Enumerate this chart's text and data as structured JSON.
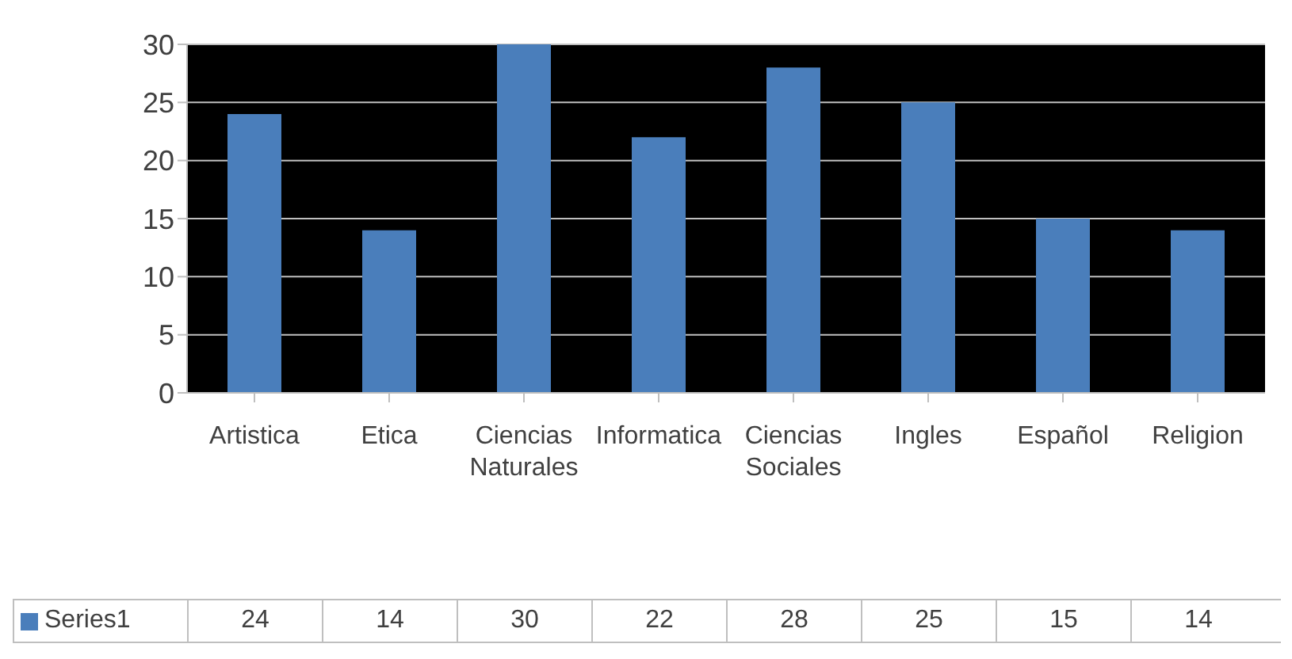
{
  "chart_data": {
    "type": "bar",
    "categories": [
      "Artistica",
      "Etica",
      "Ciencias Naturales",
      "Informatica",
      "Ciencias Sociales",
      "Ingles",
      "Español",
      "Religion"
    ],
    "series": [
      {
        "name": "Series1",
        "color": "#4a7ebb",
        "values": [
          24,
          14,
          30,
          22,
          28,
          25,
          15,
          14
        ]
      }
    ],
    "ylim": [
      0,
      30
    ],
    "yticks": [
      0,
      5,
      10,
      15,
      20,
      25,
      30
    ],
    "grid": "y",
    "data_labels": true,
    "legend": "bottom"
  }
}
